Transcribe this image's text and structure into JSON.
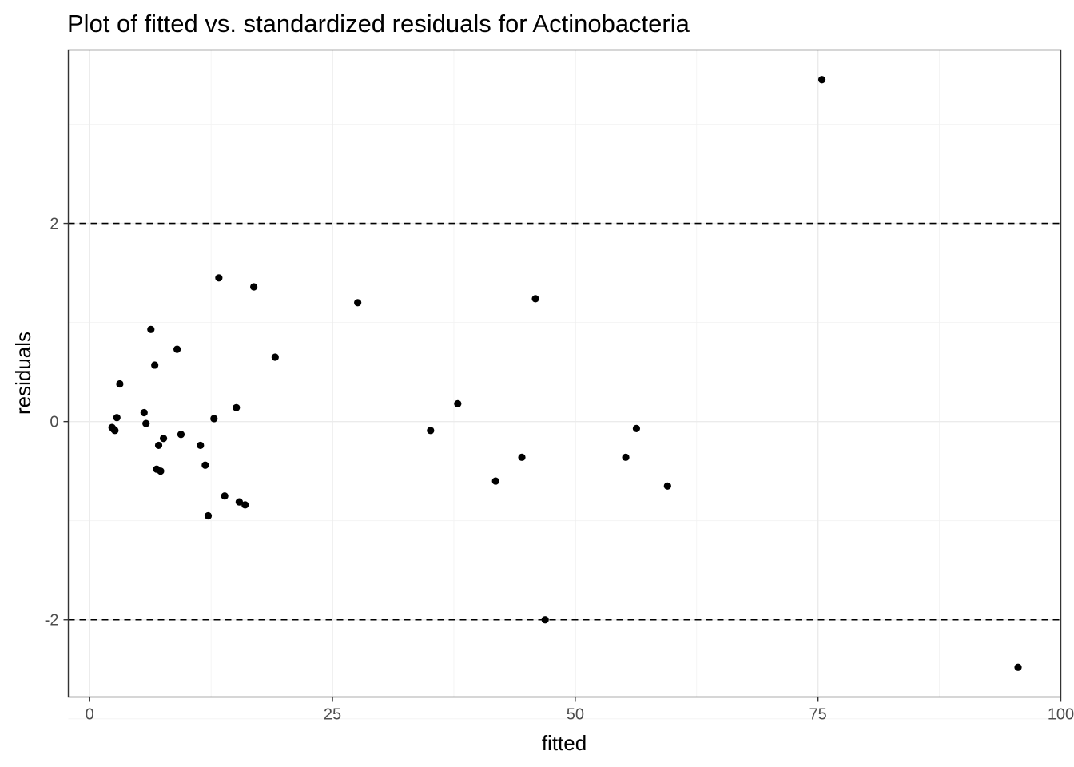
{
  "chart_data": {
    "type": "scatter",
    "title": "Plot of fitted vs. standardized residuals for Actinobacteria",
    "xlabel": "fitted",
    "ylabel": "residuals",
    "xlim": [
      -2.2,
      100
    ],
    "ylim": [
      -2.78,
      3.75
    ],
    "x_ticks": [
      0,
      25,
      50,
      75,
      100
    ],
    "x_tick_labels": [
      "0",
      "25",
      "50",
      "75",
      "100"
    ],
    "x_minor": [
      12.5,
      37.5,
      62.5,
      87.5
    ],
    "y_ticks": [
      -2,
      0,
      2
    ],
    "y_tick_labels": [
      "-2",
      "0",
      "2"
    ],
    "y_minor": [
      -3,
      -1,
      1,
      3
    ],
    "reference_lines": [
      2,
      -2
    ],
    "grid": true,
    "legend": "none",
    "point_color": "#000000",
    "points": [
      {
        "x": 2.3,
        "y": -0.06
      },
      {
        "x": 2.5,
        "y": -0.08
      },
      {
        "x": 2.6,
        "y": -0.09
      },
      {
        "x": 2.8,
        "y": 0.04
      },
      {
        "x": 3.1,
        "y": 0.38
      },
      {
        "x": 5.6,
        "y": 0.09
      },
      {
        "x": 5.8,
        "y": -0.02
      },
      {
        "x": 6.3,
        "y": 0.93
      },
      {
        "x": 6.7,
        "y": 0.57
      },
      {
        "x": 6.9,
        "y": -0.48
      },
      {
        "x": 7.1,
        "y": -0.24
      },
      {
        "x": 7.3,
        "y": -0.5
      },
      {
        "x": 7.6,
        "y": -0.17
      },
      {
        "x": 9.0,
        "y": 0.73
      },
      {
        "x": 9.4,
        "y": -0.13
      },
      {
        "x": 11.4,
        "y": -0.24
      },
      {
        "x": 11.9,
        "y": -0.44
      },
      {
        "x": 12.2,
        "y": -0.95
      },
      {
        "x": 12.8,
        "y": 0.03
      },
      {
        "x": 13.3,
        "y": 1.45
      },
      {
        "x": 13.9,
        "y": -0.75
      },
      {
        "x": 15.1,
        "y": 0.14
      },
      {
        "x": 15.4,
        "y": -0.81
      },
      {
        "x": 16.0,
        "y": -0.84
      },
      {
        "x": 16.9,
        "y": 1.36
      },
      {
        "x": 19.1,
        "y": 0.65
      },
      {
        "x": 27.6,
        "y": 1.2
      },
      {
        "x": 35.1,
        "y": -0.09
      },
      {
        "x": 37.9,
        "y": 0.18
      },
      {
        "x": 41.8,
        "y": -0.6
      },
      {
        "x": 44.5,
        "y": -0.36
      },
      {
        "x": 45.9,
        "y": 1.24
      },
      {
        "x": 46.9,
        "y": -2.0
      },
      {
        "x": 55.2,
        "y": -0.36
      },
      {
        "x": 56.3,
        "y": -0.07
      },
      {
        "x": 59.5,
        "y": -0.65
      },
      {
        "x": 75.4,
        "y": 3.45
      },
      {
        "x": 95.6,
        "y": -2.48
      }
    ]
  }
}
